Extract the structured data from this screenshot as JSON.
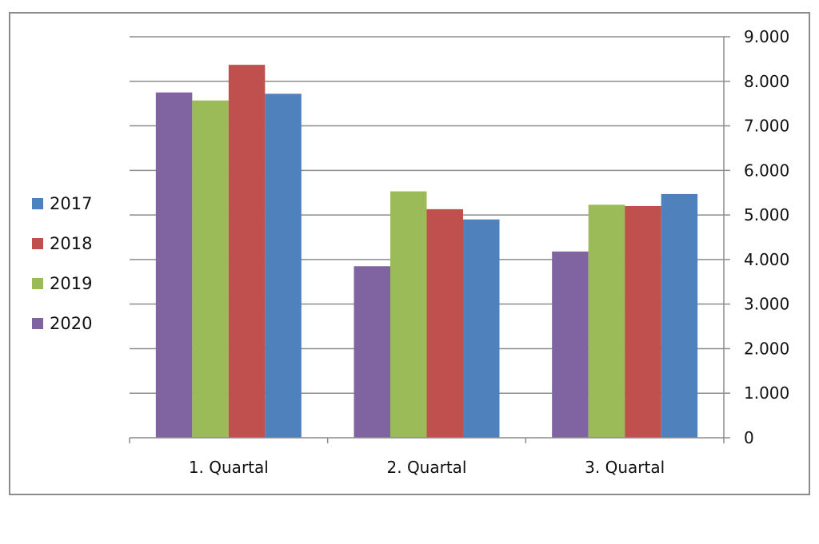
{
  "chart_data": {
    "type": "bar",
    "categories": [
      "1. Quartal",
      "2. Quartal",
      "3. Quartal"
    ],
    "series": [
      {
        "name": "2020",
        "color": "#8064a2",
        "values": [
          7750,
          3850,
          4180
        ]
      },
      {
        "name": "2019",
        "color": "#9bbb59",
        "values": [
          7570,
          5530,
          5230
        ]
      },
      {
        "name": "2018",
        "color": "#c0504d",
        "values": [
          8370,
          5130,
          5200
        ]
      },
      {
        "name": "2017",
        "color": "#4f81bd",
        "values": [
          7720,
          4900,
          5470
        ]
      }
    ],
    "yticks": [
      "0",
      "1.000",
      "2.000",
      "3.000",
      "4.000",
      "5.000",
      "6.000",
      "7.000",
      "8.000",
      "9.000"
    ],
    "ylim": [
      0,
      9000
    ],
    "y_axis_side": "right",
    "grid": true,
    "legend_position": "left",
    "legend_order": [
      "2017",
      "2018",
      "2019",
      "2020"
    ]
  }
}
